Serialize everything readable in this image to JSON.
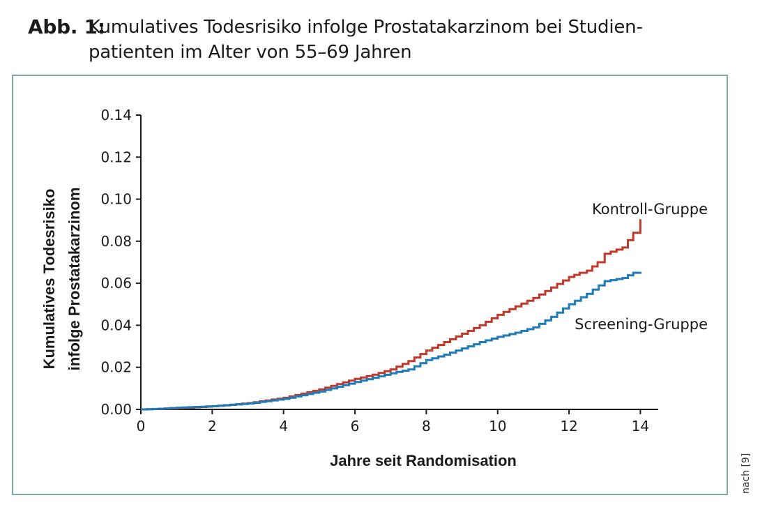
{
  "figure": {
    "label": "Abb. 1:",
    "title_line1": "Kumulatives Todesrisiko infolge Prostatakarzinom bei Studien-",
    "title_line2": "patienten im Alter von 55–69 Jahren",
    "source": "nach [9]"
  },
  "chart_data": {
    "type": "line",
    "title": "Kumulatives Todesrisiko infolge Prostatakarzinom bei Studienpatienten im Alter von 55–69 Jahren",
    "xlabel": "Jahre seit Randomisation",
    "ylabel_line1": "Kumulatives Todesrisiko",
    "ylabel_line2": "infolge Prostatakarzinom",
    "xlim": [
      0,
      14.5
    ],
    "ylim": [
      0,
      0.14
    ],
    "xticks": [
      0,
      2,
      4,
      6,
      8,
      10,
      12,
      14
    ],
    "xtick_labels": [
      "0",
      "2",
      "4",
      "6",
      "8",
      "10",
      "12",
      "14"
    ],
    "yticks": [
      0,
      0.02,
      0.04,
      0.06,
      0.08,
      0.1,
      0.12,
      0.14
    ],
    "ytick_labels": [
      "0.00",
      "0.02",
      "0.04",
      "0.06",
      "0.08",
      "0.10",
      "0.12",
      "0.14"
    ],
    "grid": false,
    "legend": "inline labels",
    "series": [
      {
        "name": "Kontroll-Gruppe",
        "color": "#c0392b",
        "x": [
          0,
          1,
          2,
          3,
          4,
          5,
          6,
          6.5,
          7,
          7.5,
          8,
          8.5,
          9,
          9.5,
          10,
          10.5,
          11,
          11.5,
          12,
          12.3,
          12.5,
          12.8,
          13,
          13.5,
          13.8,
          14
        ],
        "y": [
          0,
          0.0005,
          0.0015,
          0.003,
          0.0055,
          0.0095,
          0.0145,
          0.0165,
          0.019,
          0.023,
          0.028,
          0.032,
          0.036,
          0.04,
          0.045,
          0.049,
          0.053,
          0.058,
          0.063,
          0.065,
          0.066,
          0.07,
          0.074,
          0.077,
          0.084,
          0.0905
        ]
      },
      {
        "name": "Screening-Gruppe",
        "color": "#1f7ab8",
        "x": [
          0,
          0.5,
          1,
          2,
          3,
          4,
          5,
          6,
          6.5,
          7,
          7.5,
          8,
          8.5,
          9,
          9.5,
          10,
          10.5,
          11,
          11.5,
          12,
          12.5,
          13,
          13.5,
          13.8,
          14
        ],
        "y": [
          0,
          0.0003,
          0.0008,
          0.0015,
          0.0028,
          0.005,
          0.0085,
          0.013,
          0.015,
          0.0172,
          0.019,
          0.0235,
          0.026,
          0.029,
          0.032,
          0.0345,
          0.0365,
          0.039,
          0.044,
          0.05,
          0.055,
          0.061,
          0.0625,
          0.065,
          0.0655
        ]
      }
    ]
  }
}
